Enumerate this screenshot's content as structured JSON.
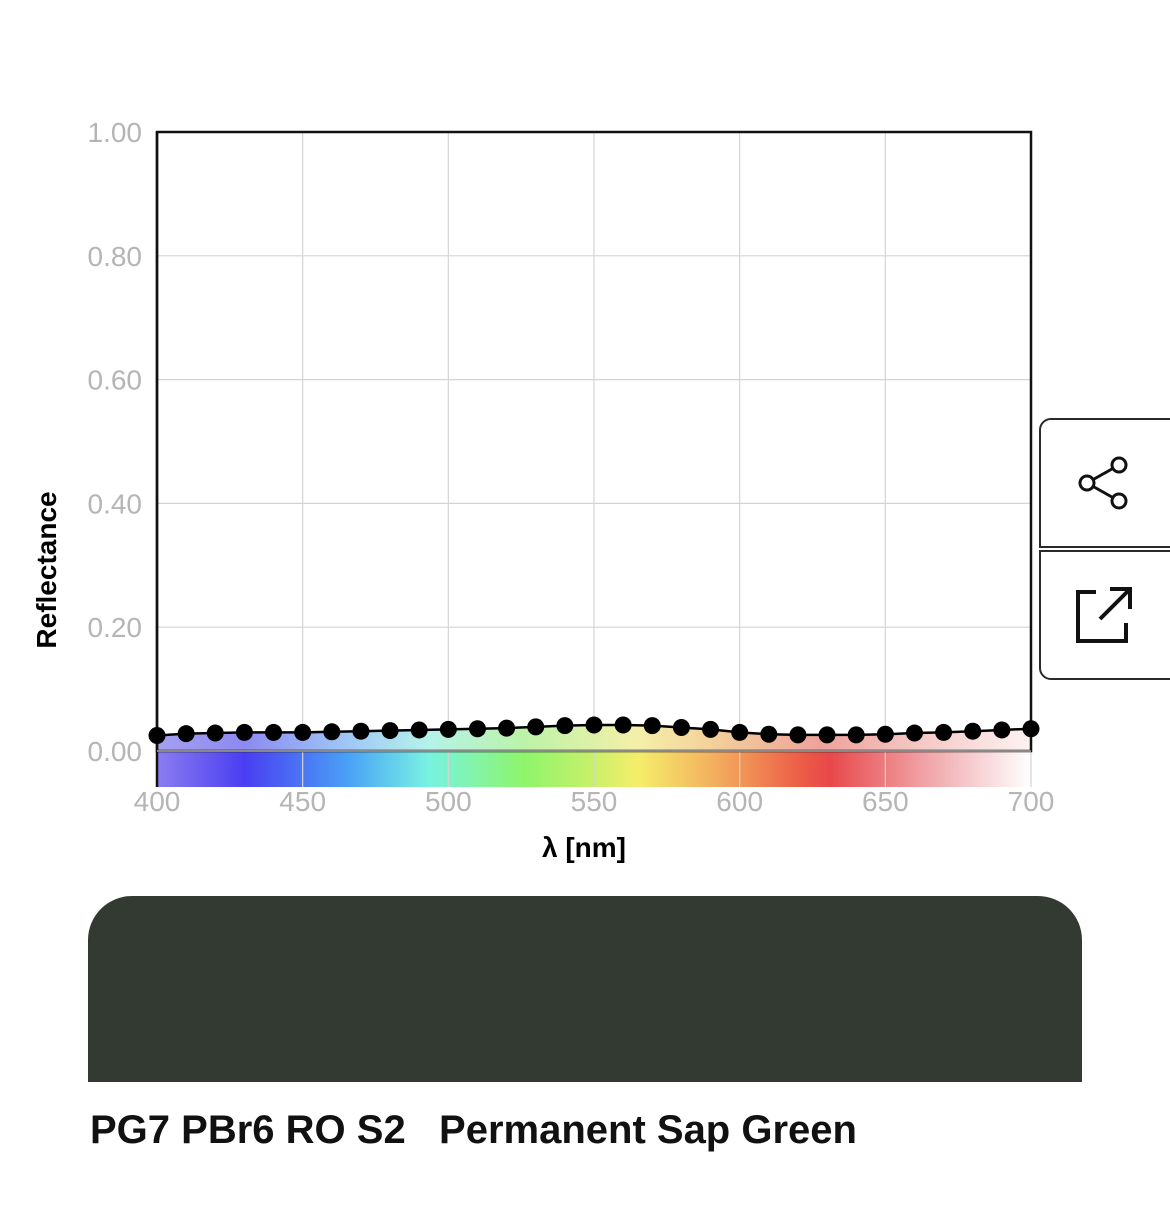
{
  "chart_data": {
    "type": "line",
    "xlabel": "λ [nm]",
    "ylabel": "Reflectance",
    "xlim": [
      400,
      700
    ],
    "ylim": [
      0,
      1
    ],
    "x_ticks": [
      "400",
      "450",
      "500",
      "550",
      "600",
      "650",
      "700"
    ],
    "y_ticks": [
      "0.00",
      "0.20",
      "0.40",
      "0.60",
      "0.80",
      "1.00"
    ],
    "x": [
      400,
      410,
      420,
      430,
      440,
      450,
      460,
      470,
      480,
      490,
      500,
      510,
      520,
      530,
      540,
      550,
      560,
      570,
      580,
      590,
      600,
      610,
      620,
      630,
      640,
      650,
      660,
      670,
      680,
      690,
      700
    ],
    "y": [
      0.025,
      0.028,
      0.029,
      0.03,
      0.03,
      0.03,
      0.031,
      0.032,
      0.033,
      0.034,
      0.035,
      0.036,
      0.037,
      0.039,
      0.041,
      0.042,
      0.042,
      0.041,
      0.038,
      0.035,
      0.03,
      0.027,
      0.026,
      0.026,
      0.026,
      0.027,
      0.029,
      0.03,
      0.032,
      0.034,
      0.036
    ],
    "grid": true,
    "spectrum_bar": true
  },
  "swatch": {
    "color": "#333a32"
  },
  "paint": {
    "codes": "PG7 PBr6 RO S2",
    "name": "Permanent Sap Green"
  },
  "buttons": {
    "share_icon": "share-icon",
    "open_icon": "external-link-icon"
  },
  "colors": {
    "line": "#000000",
    "grid": "#d4d4d4",
    "tick_label": "#b5b5b5"
  }
}
